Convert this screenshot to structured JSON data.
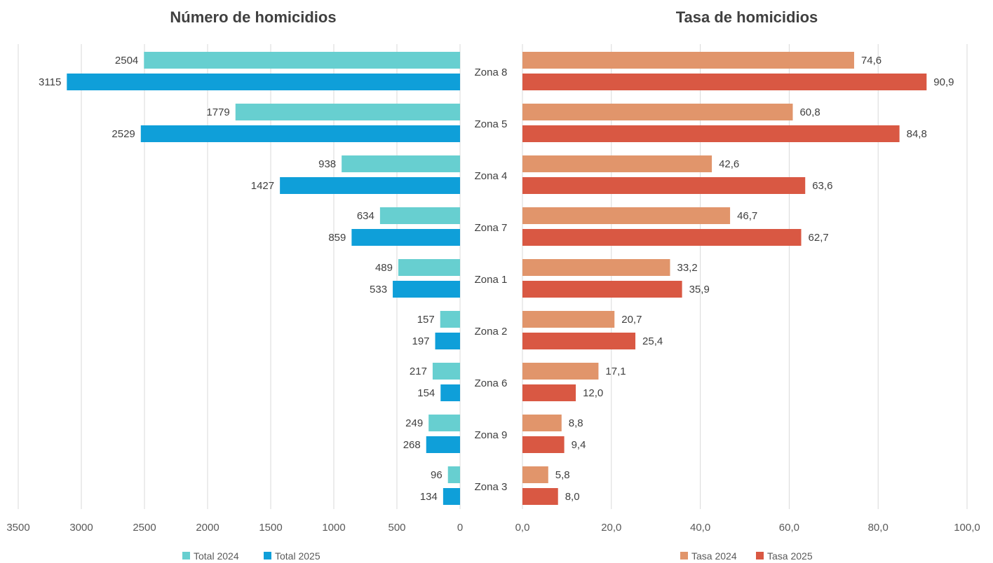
{
  "chart_data": [
    {
      "type": "bar",
      "orientation": "horizontal",
      "x_direction": "reversed",
      "title": "Número de homicidios",
      "categories": [
        "Zona 8",
        "Zona 5",
        "Zona 4",
        "Zona 7",
        "Zona 1",
        "Zona 2",
        "Zona 6",
        "Zona 9",
        "Zona 3"
      ],
      "series": [
        {
          "name": "Total 2024",
          "color": "#67CFD0",
          "values": [
            2504,
            1779,
            938,
            634,
            489,
            157,
            217,
            249,
            96
          ]
        },
        {
          "name": "Total 2025",
          "color": "#0F9FD9",
          "values": [
            3115,
            2529,
            1427,
            859,
            533,
            197,
            154,
            268,
            134
          ]
        }
      ],
      "xlim": [
        0,
        3500
      ],
      "ticks": [
        "3500",
        "3000",
        "2500",
        "2000",
        "1500",
        "1000",
        "500",
        "0"
      ],
      "grid": true,
      "legend": "bottom"
    },
    {
      "type": "bar",
      "orientation": "horizontal",
      "title": "Tasa de homicidios",
      "categories": [
        "Zona 8",
        "Zona 5",
        "Zona 4",
        "Zona 7",
        "Zona 1",
        "Zona 2",
        "Zona 6",
        "Zona 9",
        "Zona 3"
      ],
      "series": [
        {
          "name": "Tasa 2024",
          "color": "#E1956B",
          "values": [
            74.6,
            60.8,
            42.6,
            46.7,
            33.2,
            20.7,
            17.1,
            8.8,
            5.8
          ],
          "labels": [
            "74,6",
            "60,8",
            "42,6",
            "46,7",
            "33,2",
            "20,7",
            "17,1",
            "8,8",
            "5,8"
          ]
        },
        {
          "name": "Tasa 2025",
          "color": "#D95843",
          "values": [
            90.9,
            84.8,
            63.6,
            62.7,
            35.9,
            25.4,
            12.0,
            9.4,
            8.0
          ],
          "labels": [
            "90,9",
            "84,8",
            "63,6",
            "62,7",
            "35,9",
            "25,4",
            "12,0",
            "9,4",
            "8,0"
          ]
        }
      ],
      "xlim": [
        0,
        100
      ],
      "ticks": [
        "0,0",
        "20,0",
        "40,0",
        "60,0",
        "80,0",
        "100,0"
      ],
      "grid": true,
      "legend": "bottom"
    }
  ],
  "colors": {
    "grid": "#D9D9D9",
    "text": "#404040",
    "tick_text": "#595959"
  }
}
